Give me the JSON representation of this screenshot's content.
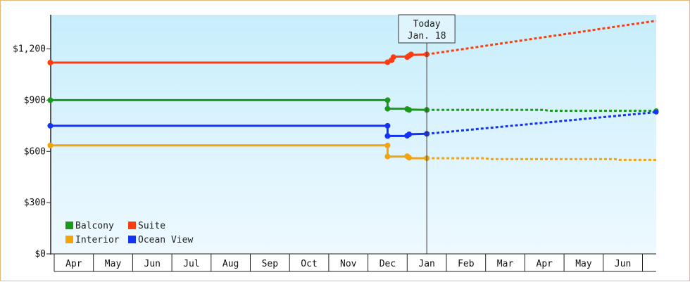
{
  "chart_data": {
    "type": "line",
    "ylim": [
      0,
      1400
    ],
    "y_ticks": [
      0,
      300,
      600,
      900,
      1200
    ],
    "y_tick_labels": [
      "$0",
      "$300",
      "$600",
      "$900",
      "$1,200"
    ],
    "x_labels": [
      "Apr",
      "May",
      "Jun",
      "Jul",
      "Aug",
      "Sep",
      "Oct",
      "Nov",
      "Dec",
      "Jan",
      "Feb",
      "Mar",
      "Apr",
      "May",
      "Jun"
    ],
    "today": {
      "line1": "Today",
      "line2": "Jan. 18",
      "month_index": 9.0
    },
    "grid": false,
    "legend_placement": "bottom-left",
    "series": [
      {
        "name": "Balcony",
        "color": "#1a9a1a",
        "points": [
          [
            -0.6,
            900
          ],
          [
            8.0,
            900
          ],
          [
            8.0,
            850
          ],
          [
            8.5,
            850
          ],
          [
            8.5,
            845
          ],
          [
            9.0,
            843
          ]
        ],
        "markers": [
          [
            -0.6,
            900
          ],
          [
            8.0,
            900
          ],
          [
            8.0,
            850
          ],
          [
            8.5,
            848
          ],
          [
            8.55,
            843
          ],
          [
            9.0,
            843
          ]
        ],
        "forecast": [
          [
            9.0,
            843
          ],
          [
            12.0,
            843
          ],
          [
            12.1,
            838
          ],
          [
            15.0,
            838
          ]
        ]
      },
      {
        "name": "Suite",
        "color": "#ff3c11",
        "points": [
          [
            -0.6,
            1120
          ],
          [
            8.0,
            1120
          ],
          [
            8.0,
            1130
          ],
          [
            8.15,
            1130
          ],
          [
            8.15,
            1155
          ],
          [
            8.55,
            1155
          ],
          [
            8.6,
            1165
          ],
          [
            9.0,
            1168
          ]
        ],
        "markers": [
          [
            -0.6,
            1120
          ],
          [
            8.0,
            1122
          ],
          [
            8.1,
            1134
          ],
          [
            8.15,
            1152
          ],
          [
            8.5,
            1152
          ],
          [
            8.55,
            1160
          ],
          [
            8.6,
            1168
          ],
          [
            9.0,
            1168
          ]
        ],
        "forecast": [
          [
            9.0,
            1168
          ],
          [
            15.6,
            1365
          ]
        ]
      },
      {
        "name": "Interior",
        "color": "#f5a30a",
        "points": [
          [
            -0.6,
            635
          ],
          [
            8.0,
            635
          ],
          [
            8.0,
            570
          ],
          [
            8.5,
            570
          ],
          [
            8.5,
            560
          ],
          [
            9.0,
            560
          ]
        ],
        "markers": [
          [
            -0.6,
            635
          ],
          [
            8.0,
            635
          ],
          [
            8.0,
            570
          ],
          [
            8.5,
            572
          ],
          [
            8.55,
            563
          ],
          [
            9.0,
            560
          ]
        ],
        "forecast": [
          [
            9.0,
            560
          ],
          [
            10.5,
            560
          ],
          [
            10.6,
            555
          ],
          [
            13.8,
            555
          ],
          [
            13.9,
            550
          ],
          [
            15.6,
            550
          ]
        ]
      },
      {
        "name": "Ocean View",
        "color": "#1433f5",
        "points": [
          [
            -0.6,
            750
          ],
          [
            8.0,
            750
          ],
          [
            8.0,
            690
          ],
          [
            8.5,
            690
          ],
          [
            8.5,
            700
          ],
          [
            9.0,
            703
          ]
        ],
        "markers": [
          [
            -0.6,
            750
          ],
          [
            8.0,
            750
          ],
          [
            8.0,
            690
          ],
          [
            8.5,
            692
          ],
          [
            8.55,
            700
          ],
          [
            9.0,
            703
          ]
        ],
        "forecast": [
          [
            9.0,
            703
          ],
          [
            15.0,
            830
          ]
        ]
      }
    ],
    "legend": [
      {
        "name": "Balcony",
        "color": "#1a9a1a"
      },
      {
        "name": "Suite",
        "color": "#ff3c11"
      },
      {
        "name": "Interior",
        "color": "#f5a30a"
      },
      {
        "name": "Ocean View",
        "color": "#1433f5"
      }
    ]
  }
}
